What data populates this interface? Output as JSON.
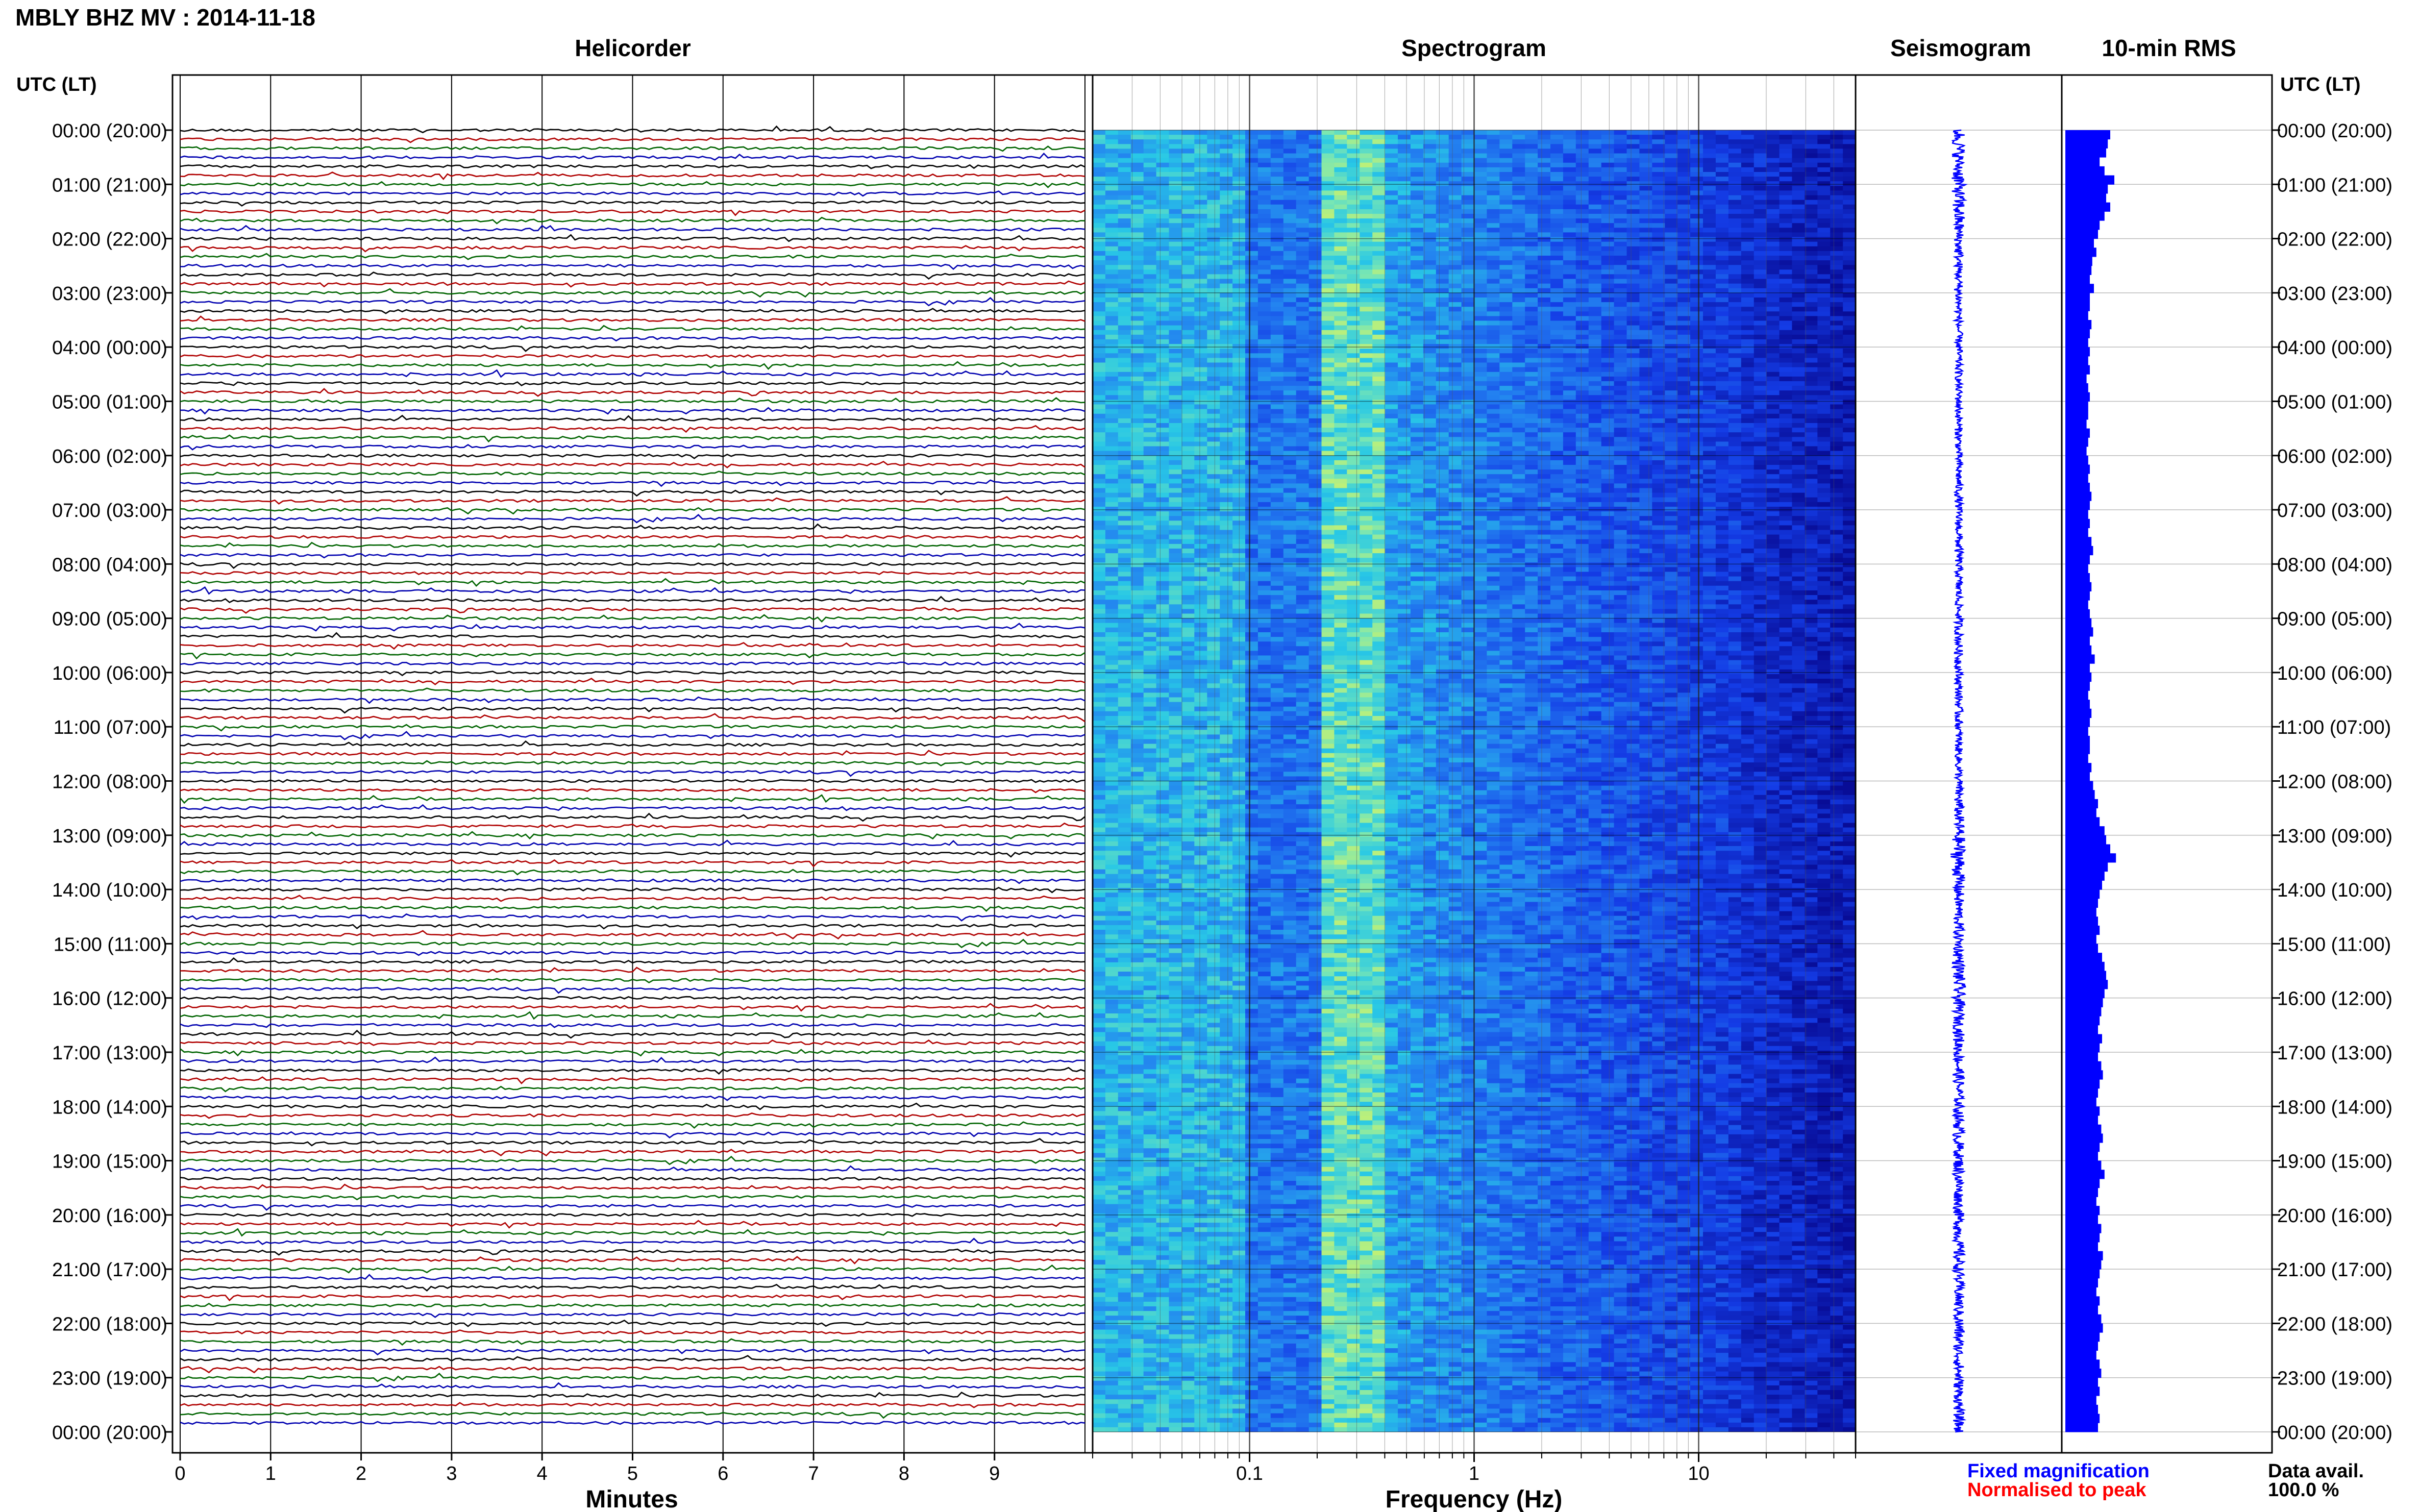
{
  "chart_data": {
    "type": "seismic_daily_plot",
    "title": "MBLY BHZ MV : 2014-11-18",
    "panels": {
      "helicorder": "Helicorder",
      "spectrogram": "Spectrogram",
      "seismogram": "Seismogram",
      "rms": "10-min RMS"
    },
    "time_axis_label": "UTC (LT)",
    "time_ticks": [
      "00:00 (20:00)",
      "01:00 (21:00)",
      "02:00 (22:00)",
      "03:00 (23:00)",
      "04:00 (00:00)",
      "05:00 (01:00)",
      "06:00 (02:00)",
      "07:00 (03:00)",
      "08:00 (04:00)",
      "09:00 (05:00)",
      "10:00 (06:00)",
      "11:00 (07:00)",
      "12:00 (08:00)",
      "13:00 (09:00)",
      "14:00 (10:00)",
      "15:00 (11:00)",
      "16:00 (12:00)",
      "17:00 (13:00)",
      "18:00 (14:00)",
      "19:00 (15:00)",
      "20:00 (16:00)",
      "21:00 (17:00)",
      "22:00 (18:00)",
      "23:00 (19:00)",
      "00:00 (20:00)"
    ],
    "helicorder": {
      "xlabel": "Minutes",
      "xticks": [
        "0",
        "1",
        "2",
        "3",
        "4",
        "5",
        "6",
        "7",
        "8",
        "9"
      ],
      "xlim": [
        0,
        10
      ],
      "trace_colors": [
        "#000000",
        "#b00000",
        "#006400",
        "#0000b0"
      ],
      "traces_per_hour": 6
    },
    "spectrogram": {
      "xlabel": "Frequency (Hz)",
      "xscale": "log",
      "xlim": [
        0.02,
        50
      ],
      "xticks": [
        "0.1",
        "1",
        "10"
      ]
    },
    "rms": {
      "interval_minutes": 10,
      "relative_values": [
        0.55,
        0.52,
        0.5,
        0.42,
        0.48,
        0.6,
        0.52,
        0.5,
        0.55,
        0.48,
        0.42,
        0.4,
        0.35,
        0.38,
        0.33,
        0.32,
        0.3,
        0.35,
        0.3,
        0.3,
        0.28,
        0.32,
        0.3,
        0.28,
        0.3,
        0.28,
        0.3,
        0.26,
        0.28,
        0.3,
        0.28,
        0.28,
        0.26,
        0.3,
        0.28,
        0.26,
        0.28,
        0.3,
        0.28,
        0.3,
        0.32,
        0.3,
        0.28,
        0.3,
        0.28,
        0.32,
        0.34,
        0.3,
        0.28,
        0.3,
        0.32,
        0.3,
        0.28,
        0.3,
        0.32,
        0.34,
        0.3,
        0.32,
        0.36,
        0.3,
        0.32,
        0.3,
        0.28,
        0.3,
        0.32,
        0.3,
        0.28,
        0.3,
        0.3,
        0.28,
        0.32,
        0.3,
        0.34,
        0.36,
        0.4,
        0.38,
        0.42,
        0.48,
        0.5,
        0.55,
        0.62,
        0.52,
        0.48,
        0.45,
        0.42,
        0.4,
        0.38,
        0.4,
        0.42,
        0.38,
        0.4,
        0.45,
        0.48,
        0.5,
        0.52,
        0.48,
        0.46,
        0.44,
        0.42,
        0.4,
        0.45,
        0.42,
        0.4,
        0.44,
        0.46,
        0.42,
        0.4,
        0.38,
        0.42,
        0.4,
        0.44,
        0.46,
        0.42,
        0.4,
        0.44,
        0.48,
        0.42,
        0.4,
        0.38,
        0.42,
        0.4,
        0.44,
        0.42,
        0.4,
        0.46,
        0.44,
        0.42,
        0.4,
        0.38,
        0.42,
        0.4,
        0.44,
        0.46,
        0.42,
        0.4,
        0.38,
        0.42,
        0.44,
        0.4,
        0.42,
        0.38,
        0.4,
        0.42,
        0.4
      ]
    },
    "legend": {
      "fixed": "Fixed magnification",
      "normalised": "Normalised to peak",
      "fixed_color": "#0000ff",
      "normalised_color": "#ff0000"
    },
    "data_availability": {
      "label": "Data avail.",
      "value": "100.0 %"
    }
  }
}
